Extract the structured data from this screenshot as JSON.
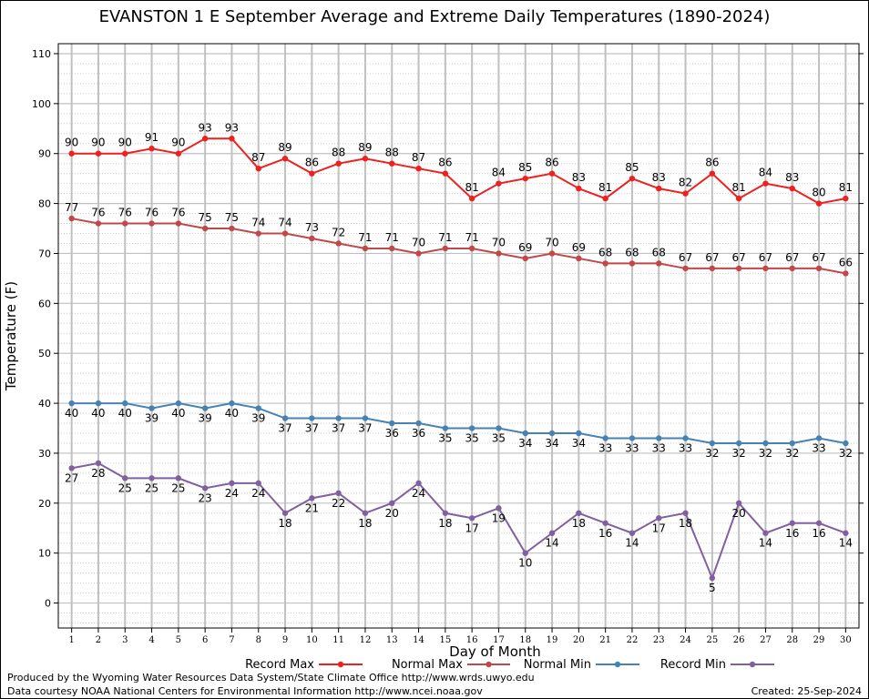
{
  "chart_data": {
    "type": "line",
    "title": "EVANSTON 1 E September Average and Extreme Daily Temperatures (1890-2024)",
    "xlabel": "Day of Month",
    "ylabel": "Temperature (F)",
    "xlim": [
      0.5,
      30.5
    ],
    "ylim": [
      -5,
      112
    ],
    "y_ticks": [
      0,
      10,
      20,
      30,
      40,
      50,
      60,
      70,
      80,
      90,
      100,
      110
    ],
    "grid": true,
    "legend_position": "bottom",
    "x": [
      1,
      2,
      3,
      4,
      5,
      6,
      7,
      8,
      9,
      10,
      11,
      12,
      13,
      14,
      15,
      16,
      17,
      18,
      19,
      20,
      21,
      22,
      23,
      24,
      25,
      26,
      27,
      28,
      29,
      30
    ],
    "series": [
      {
        "name": "Record Max",
        "color": "#ee2020",
        "label_pos": "above",
        "values": [
          90,
          90,
          90,
          91,
          90,
          93,
          93,
          87,
          89,
          86,
          88,
          89,
          88,
          87,
          86,
          81,
          84,
          85,
          86,
          83,
          81,
          85,
          83,
          82,
          86,
          81,
          84,
          83,
          80,
          81
        ]
      },
      {
        "name": "Normal Max",
        "color": "#c04848",
        "label_pos": "above",
        "values": [
          77,
          76,
          76,
          76,
          76,
          75,
          75,
          74,
          74,
          73,
          72,
          71,
          71,
          70,
          71,
          71,
          70,
          69,
          70,
          69,
          68,
          68,
          68,
          67,
          67,
          67,
          67,
          67,
          67,
          66
        ]
      },
      {
        "name": "Normal Min",
        "color": "#4682b4",
        "label_pos": "below",
        "values": [
          40,
          40,
          40,
          39,
          40,
          39,
          40,
          39,
          37,
          37,
          37,
          37,
          36,
          36,
          35,
          35,
          35,
          34,
          34,
          34,
          33,
          33,
          33,
          33,
          32,
          32,
          32,
          32,
          33,
          32
        ]
      },
      {
        "name": "Record Min",
        "color": "#8060a0",
        "label_pos": "below",
        "values": [
          27,
          28,
          25,
          25,
          25,
          23,
          24,
          24,
          18,
          21,
          22,
          18,
          20,
          24,
          18,
          17,
          19,
          10,
          14,
          18,
          16,
          14,
          17,
          18,
          5,
          20,
          14,
          16,
          16,
          14
        ]
      }
    ]
  },
  "footer": {
    "credit1": "Produced by the Wyoming Water Resources Data System/State Climate Office http://www.wrds.uwyo.edu",
    "credit2": "Data courtesy NOAA National Centers for Environmental Information http://www.ncei.noaa.gov",
    "created": "Created:  25-Sep-2024"
  }
}
